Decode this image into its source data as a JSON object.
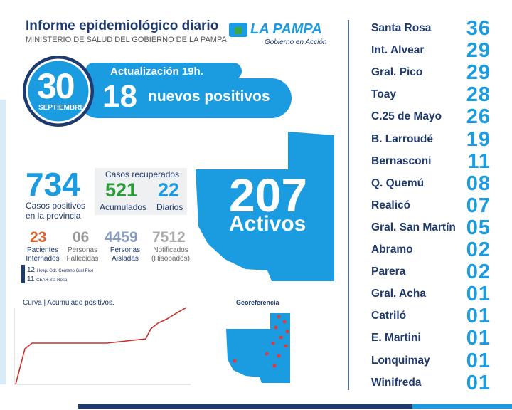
{
  "header": {
    "title": "Informe epidemiológico diario",
    "subtitle": "MINISTERIO DE SALUD DEL GOBIERNO DE LA PAMPA",
    "logo": "LA PAMPA",
    "logo_tagline": "Gobierno en Acción"
  },
  "date": {
    "day": "30",
    "month": "SEPTIEMBRE",
    "update": "Actualización 19h.",
    "new_cases": "18",
    "new_cases_label": "nuevos positivos"
  },
  "stats": {
    "total": {
      "value": "734",
      "label": "Casos positivos en la provincia"
    },
    "recovered": {
      "title": "Casos recuperados",
      "accumulated": "521",
      "accumulated_label": "Acumulados",
      "daily": "22",
      "daily_label": "Diarios"
    },
    "active": {
      "value": "207",
      "label": "Activos"
    },
    "hospitalized": {
      "value": "23",
      "label": "Pacientes Internados"
    },
    "deaths": {
      "value": "06",
      "label": "Personas Fallecidas"
    },
    "isolated": {
      "value": "4459",
      "label": "Personas Aisladas"
    },
    "notified": {
      "value": "7512",
      "label": "Notificados (Hisopados)"
    }
  },
  "hospitals": [
    {
      "count": "12",
      "name": "Hosp. Gdr. Centeno Gral Pico"
    },
    {
      "count": "11",
      "name": "CEAR Sta Rosa"
    }
  ],
  "curve": {
    "title": "Curva | Acumulado positivos."
  },
  "georef": {
    "title": "Georeferencia"
  },
  "localities": [
    {
      "name": "Santa Rosa",
      "count": "36"
    },
    {
      "name": "Int. Alvear",
      "count": "29"
    },
    {
      "name": "Gral. Pico",
      "count": "29"
    },
    {
      "name": "Toay",
      "count": "28"
    },
    {
      "name": "C.25 de Mayo",
      "count": "26"
    },
    {
      "name": "B. Larroudé",
      "count": "19"
    },
    {
      "name": "Bernasconi",
      "count": "11"
    },
    {
      "name": "Q. Quemú",
      "count": "08"
    },
    {
      "name": "Realicó",
      "count": "07"
    },
    {
      "name": "Gral. San Martín",
      "count": "05"
    },
    {
      "name": "Abramo",
      "count": "02"
    },
    {
      "name": "Parera",
      "count": "02"
    },
    {
      "name": "Gral. Acha",
      "count": "01"
    },
    {
      "name": "Catriló",
      "count": "01"
    },
    {
      "name": "E. Martini",
      "count": "01"
    },
    {
      "name": "Lonquimay",
      "count": "01"
    },
    {
      "name": "Winifreda",
      "count": "01"
    }
  ]
}
